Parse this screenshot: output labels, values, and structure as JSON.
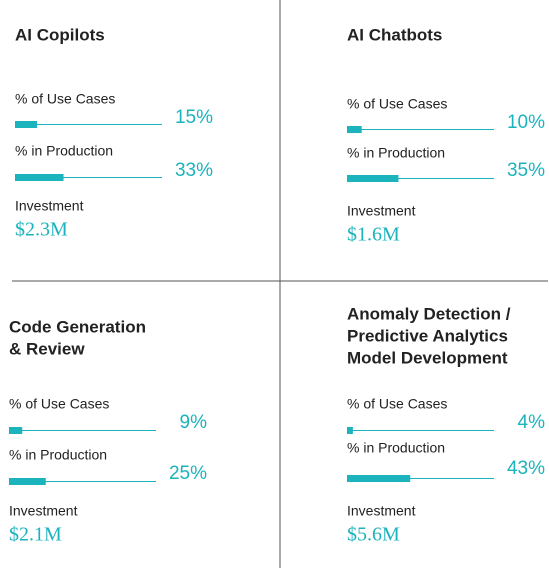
{
  "xlim": [
    0,
    100
  ],
  "panels": [
    {
      "title": [
        "AI Copilots"
      ],
      "metrics": [
        {
          "label": "% of Use Cases",
          "value": 15,
          "value_label": "15%"
        },
        {
          "label": "% in Production",
          "value": 33,
          "value_label": "33%"
        }
      ],
      "investment_label": "Investment",
      "investment": "$2.3M"
    },
    {
      "title": [
        "AI Chatbots"
      ],
      "metrics": [
        {
          "label": "% of Use Cases",
          "value": 10,
          "value_label": "10%"
        },
        {
          "label": "% in Production",
          "value": 35,
          "value_label": "35%"
        }
      ],
      "investment_label": "Investment",
      "investment": "$1.6M"
    },
    {
      "title": [
        "Code Generation",
        "& Review"
      ],
      "metrics": [
        {
          "label": "% of Use Cases",
          "value": 9,
          "value_label": "9%"
        },
        {
          "label": "% in Production",
          "value": 25,
          "value_label": "25%"
        }
      ],
      "investment_label": "Investment",
      "investment": "$2.1M"
    },
    {
      "title": [
        "Anomaly Detection /",
        "Predictive Analytics",
        "Model Development"
      ],
      "metrics": [
        {
          "label": "% of Use Cases",
          "value": 4,
          "value_label": "4%"
        },
        {
          "label": "% in Production",
          "value": 43,
          "value_label": "43%"
        }
      ],
      "investment_label": "Investment",
      "investment": "$5.6M"
    }
  ]
}
